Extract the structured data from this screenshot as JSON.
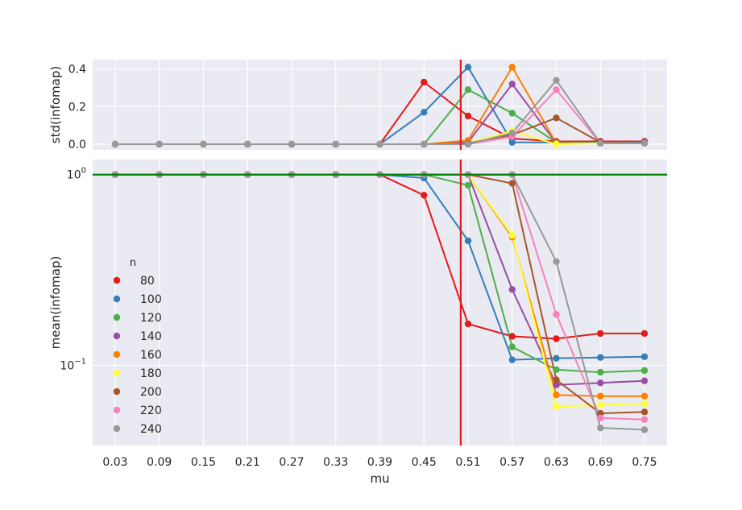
{
  "chart_data": [
    {
      "id": "top",
      "type": "line",
      "ylabel": "std(infomap)",
      "xlabel": "",
      "yscale": "linear",
      "ylim": [
        -0.03,
        0.45
      ],
      "yticks": [
        {
          "value": 0.0,
          "label": "0.0"
        },
        {
          "value": 0.2,
          "label": "0.2"
        },
        {
          "value": 0.4,
          "label": "0.4"
        }
      ],
      "grid": true,
      "vline": {
        "x": 0.5,
        "color": "#e41a1c"
      },
      "series": [
        {
          "name": "80",
          "color": "#e41a1c",
          "values": [
            0,
            0,
            0,
            0,
            0,
            0,
            0,
            0.33,
            0.15,
            0.03,
            0.015,
            0.015,
            0.015
          ]
        },
        {
          "name": "100",
          "color": "#377eb8",
          "values": [
            0,
            0,
            0,
            0,
            0,
            0,
            0,
            0.17,
            0.41,
            0.01,
            0.01,
            0.01,
            0.01
          ]
        },
        {
          "name": "120",
          "color": "#4daf4a",
          "values": [
            0,
            0,
            0,
            0,
            0,
            0,
            0,
            0,
            0.29,
            0.165,
            0.01,
            0.005,
            0.005
          ]
        },
        {
          "name": "140",
          "color": "#984ea3",
          "values": [
            0,
            0,
            0,
            0,
            0,
            0,
            0,
            0,
            0.01,
            0.32,
            0.005,
            0.005,
            0.005
          ]
        },
        {
          "name": "160",
          "color": "#ff7f00",
          "values": [
            0,
            0,
            0,
            0,
            0,
            0,
            0,
            0,
            0.02,
            0.41,
            0.005,
            0.005,
            0.005
          ]
        },
        {
          "name": "180",
          "color": "#ffff33",
          "values": [
            0,
            0,
            0,
            0,
            0,
            0,
            0,
            0,
            0.005,
            0.07,
            0,
            0.005,
            0.005
          ]
        },
        {
          "name": "200",
          "color": "#a65628",
          "values": [
            0,
            0,
            0,
            0,
            0,
            0,
            0,
            0,
            0.005,
            0.05,
            0.14,
            0.01,
            0.005
          ]
        },
        {
          "name": "220",
          "color": "#f781bf",
          "values": [
            0,
            0,
            0,
            0,
            0,
            0,
            0,
            0,
            0,
            0.04,
            0.29,
            0.005,
            0.005
          ]
        },
        {
          "name": "240",
          "color": "#999999",
          "values": [
            0,
            0,
            0,
            0,
            0,
            0,
            0,
            0,
            0,
            0.06,
            0.34,
            0.005,
            0.005
          ]
        }
      ]
    },
    {
      "id": "bottom",
      "type": "line",
      "ylabel": "mean(infomap)",
      "xlabel": "mu",
      "yscale": "log",
      "ylim": [
        0.038,
        1.2
      ],
      "yticks": [
        {
          "value": 1.0,
          "base": "10",
          "exp": "0"
        },
        {
          "value": 0.1,
          "base": "10",
          "exp": "−1"
        }
      ],
      "grid": true,
      "hline": {
        "y": 1.0,
        "color": "#008000"
      },
      "vline": {
        "x": 0.5,
        "color": "#e41a1c"
      },
      "legend": {
        "title": "n",
        "location": "center-left"
      },
      "series": [
        {
          "name": "80",
          "color": "#e41a1c",
          "values": [
            1,
            1,
            1,
            1,
            1,
            1,
            1,
            0.78,
            0.165,
            0.142,
            0.138,
            0.147,
            0.147
          ]
        },
        {
          "name": "100",
          "color": "#377eb8",
          "values": [
            1,
            1,
            1,
            1,
            1,
            1,
            1,
            0.96,
            0.45,
            0.107,
            0.109,
            0.11,
            0.111
          ]
        },
        {
          "name": "120",
          "color": "#4daf4a",
          "values": [
            1,
            1,
            1,
            1,
            1,
            1,
            1,
            1,
            0.88,
            0.125,
            0.095,
            0.092,
            0.094
          ]
        },
        {
          "name": "140",
          "color": "#984ea3",
          "values": [
            1,
            1,
            1,
            1,
            1,
            1,
            1,
            1,
            1,
            0.25,
            0.079,
            0.081,
            0.083
          ]
        },
        {
          "name": "160",
          "color": "#ff7f00",
          "values": [
            1,
            1,
            1,
            1,
            1,
            1,
            1,
            1,
            1,
            0.47,
            0.07,
            0.069,
            0.069
          ]
        },
        {
          "name": "180",
          "color": "#ffff33",
          "values": [
            1,
            1,
            1,
            1,
            1,
            1,
            1,
            1,
            1,
            0.48,
            0.061,
            0.062,
            0.063
          ]
        },
        {
          "name": "200",
          "color": "#a65628",
          "values": [
            1,
            1,
            1,
            1,
            1,
            1,
            1,
            1,
            1,
            0.9,
            0.084,
            0.056,
            0.057
          ]
        },
        {
          "name": "220",
          "color": "#f781bf",
          "values": [
            1,
            1,
            1,
            1,
            1,
            1,
            1,
            1,
            1,
            1,
            0.185,
            0.053,
            0.052
          ]
        },
        {
          "name": "240",
          "color": "#999999",
          "values": [
            1,
            1,
            1,
            1,
            1,
            1,
            1,
            1,
            1,
            1,
            0.35,
            0.047,
            0.046
          ]
        }
      ]
    }
  ],
  "x_categories": [
    "0.03",
    "0.09",
    "0.15",
    "0.21",
    "0.27",
    "0.33",
    "0.39",
    "0.45",
    "0.51",
    "0.57",
    "0.63",
    "0.69",
    "0.75"
  ]
}
